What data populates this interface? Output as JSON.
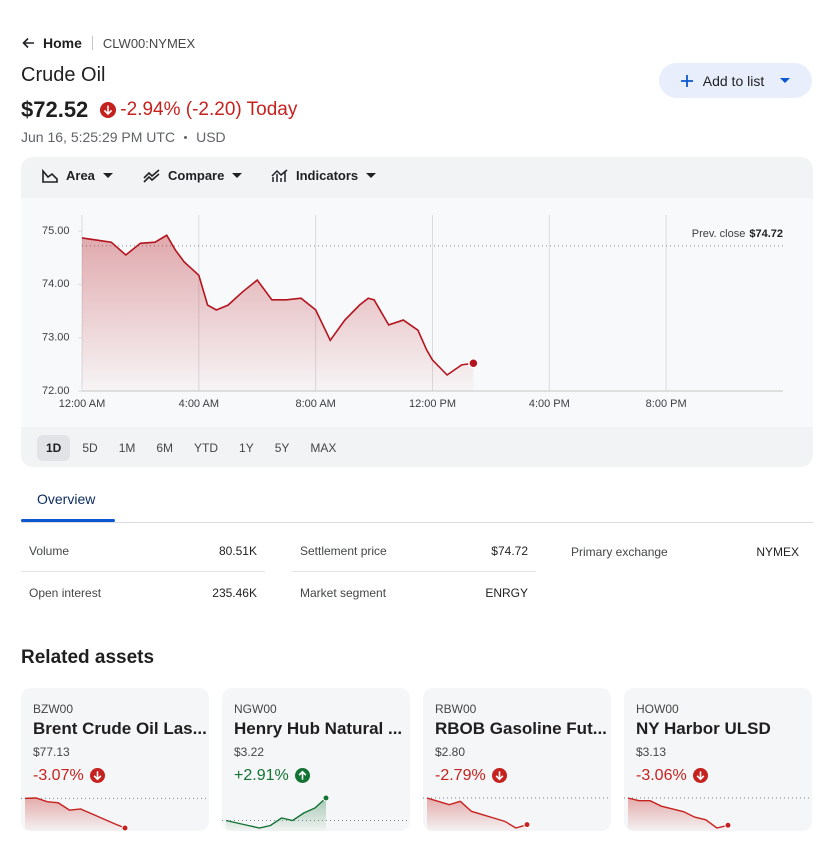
{
  "breadcrumb": {
    "home": "Home",
    "symbol": "CLW00:NYMEX"
  },
  "header": {
    "title": "Crude Oil",
    "price": "$72.52",
    "change": "-2.94% (-2.20) Today",
    "direction": "down",
    "color": "#c5221f",
    "timestamp": "Jun 16, 5:25:29 PM UTC",
    "currency": "USD",
    "button": "Add to list"
  },
  "toolbar": [
    "Area",
    "Compare",
    "Indicators"
  ],
  "chart_data": {
    "type": "area",
    "color": "#b3141e",
    "grid": true,
    "x": [
      0,
      0.5,
      1,
      1.5,
      2,
      2.5,
      2.9,
      3.2,
      3.5,
      4,
      4.3,
      4.6,
      5,
      5.5,
      6,
      6.5,
      7,
      7.5,
      8,
      8.5,
      9,
      9.5,
      9.8,
      10,
      10.5,
      11,
      11.5,
      11.8,
      12,
      12.5,
      13,
      13.4
    ],
    "values": [
      74.87,
      74.83,
      74.79,
      74.55,
      74.77,
      74.79,
      74.92,
      74.64,
      74.42,
      74.17,
      73.61,
      73.52,
      73.61,
      73.86,
      74.08,
      73.71,
      73.71,
      73.74,
      73.52,
      72.95,
      73.33,
      73.61,
      73.74,
      73.71,
      73.24,
      73.33,
      73.14,
      72.77,
      72.58,
      72.3,
      72.49,
      72.52
    ],
    "xlim": [
      0,
      24
    ],
    "xticks": [
      {
        "value": 0,
        "label": "12:00 AM"
      },
      {
        "value": 4,
        "label": "4:00 AM"
      },
      {
        "value": 8,
        "label": "8:00 AM"
      },
      {
        "value": 12,
        "label": "12:00 PM"
      },
      {
        "value": 16,
        "label": "4:00 PM"
      },
      {
        "value": 20,
        "label": "8:00 PM"
      }
    ],
    "ylim": [
      72,
      75.3
    ],
    "yticks": [
      {
        "value": 72,
        "label": "72.00"
      },
      {
        "value": 73,
        "label": "73.00"
      },
      {
        "value": 74,
        "label": "74.00"
      },
      {
        "value": 75,
        "label": "75.00"
      }
    ],
    "prev_close_title": "Prev. close",
    "prev_close": {
      "value": 74.72,
      "label": "$74.72"
    }
  },
  "ranges": [
    "1D",
    "5D",
    "1M",
    "6M",
    "YTD",
    "1Y",
    "5Y",
    "MAX"
  ],
  "tabs": [
    "Overview"
  ],
  "stats": [
    [
      "Volume",
      "80.51K"
    ],
    [
      "Settlement price",
      "$74.72"
    ],
    [
      "Primary exchange",
      "NYMEX"
    ],
    [
      "Open interest",
      "235.46K"
    ],
    [
      "Market segment",
      "ENRGY"
    ]
  ],
  "related": {
    "title": "Related assets",
    "cards": [
      {
        "symbol": "BZW00",
        "name": "Brent Crude Oil Las...",
        "price": "$77.13",
        "change": "-3.07%",
        "direction": "down",
        "color": "#c5221f",
        "sparkline": [
          79.57,
          79.6,
          79.3,
          79.2,
          78.6,
          78.7,
          78.3,
          77.9,
          77.5,
          77.13
        ]
      },
      {
        "symbol": "NGW00",
        "name": "Henry Hub Natural ...",
        "price": "$3.22",
        "change": "+2.91%",
        "direction": "up",
        "color": "#137333",
        "sparkline": [
          3.13,
          3.12,
          3.11,
          3.1,
          3.11,
          3.14,
          3.13,
          3.16,
          3.18,
          3.22
        ]
      },
      {
        "symbol": "RBW00",
        "name": "RBOB Gasoline Fut...",
        "price": "$2.80",
        "change": "-2.79%",
        "direction": "down",
        "color": "#c5221f",
        "sparkline": [
          2.88,
          2.87,
          2.86,
          2.87,
          2.84,
          2.83,
          2.82,
          2.81,
          2.79,
          2.8
        ]
      },
      {
        "symbol": "HOW00",
        "name": "NY Harbor ULSD",
        "price": "$3.13",
        "change": "-3.06%",
        "direction": "down",
        "color": "#c5221f",
        "sparkline": [
          3.23,
          3.22,
          3.22,
          3.2,
          3.19,
          3.18,
          3.16,
          3.15,
          3.12,
          3.13
        ]
      }
    ]
  }
}
